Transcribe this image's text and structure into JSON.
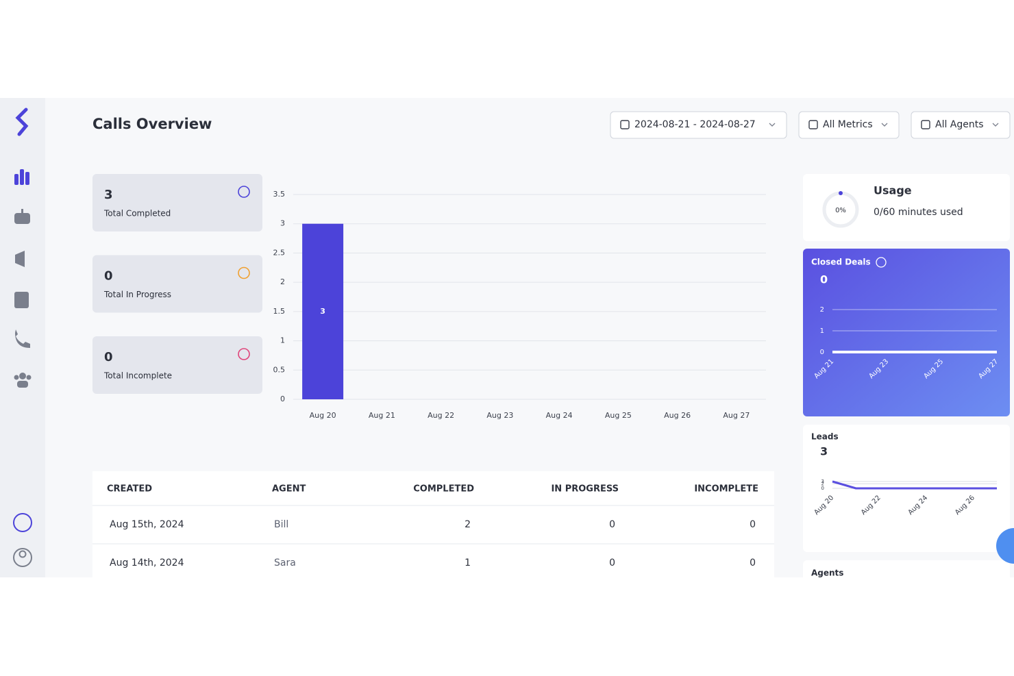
{
  "header": {
    "title": "Calls Overview",
    "filters": [
      "2024-08-21 - 2024-08-27",
      "All Metrics",
      "All Agents"
    ]
  },
  "stats": [
    {
      "value": 3,
      "label": "Total Completed"
    },
    {
      "value": 0,
      "label": "Total In Progress"
    },
    {
      "value": 0,
      "label": "Total Incomplete"
    }
  ],
  "usage": {
    "title": "Usage",
    "percent": "0%",
    "text": "0/60 minutes used"
  },
  "closed_deals": {
    "title": "Closed Deals",
    "total": 0
  },
  "leads": {
    "title": "Leads",
    "total": 3
  },
  "agents": {
    "title": "Agents"
  },
  "chart_data": [
    {
      "type": "bar",
      "categories": [
        "Aug 20",
        "Aug 21",
        "Aug 22",
        "Aug 23",
        "Aug 24",
        "Aug 25",
        "Aug 26",
        "Aug 27"
      ],
      "values": [
        3,
        0,
        0,
        0,
        0,
        0,
        0,
        0
      ],
      "color": "#4c43d9",
      "ylim": [
        0,
        3.5
      ],
      "yticks": [
        0,
        0.5,
        1,
        1.5,
        2,
        2.5,
        3,
        3.5
      ],
      "grid": true
    },
    {
      "type": "line",
      "categories": [
        "Aug 21",
        null,
        "Aug 23",
        null,
        "Aug 25",
        null,
        "Aug 27"
      ],
      "values": [
        0,
        0,
        0,
        0,
        0,
        0,
        0
      ],
      "color": "#ffffff",
      "ylim": [
        0,
        2
      ],
      "yticks": [
        0,
        1,
        2
      ],
      "grid": true
    },
    {
      "type": "line",
      "categories": [
        "Aug 20",
        null,
        "Aug 22",
        null,
        "Aug 24",
        null,
        "Aug 26",
        null
      ],
      "values": [
        3,
        0,
        0,
        0,
        0,
        0,
        0,
        0
      ],
      "color": "#5a4fe0",
      "ylim": [
        0,
        3
      ],
      "yticks": [
        0,
        2,
        3
      ],
      "grid": true
    }
  ],
  "table": {
    "headers": [
      "CREATED",
      "AGENT",
      "COMPLETED",
      "IN PROGRESS",
      "INCOMPLETE"
    ],
    "rows": [
      [
        "Aug 15th, 2024",
        "Bill",
        2,
        0,
        0
      ],
      [
        "Aug 14th, 2024",
        "Sara",
        1,
        0,
        0
      ]
    ]
  }
}
